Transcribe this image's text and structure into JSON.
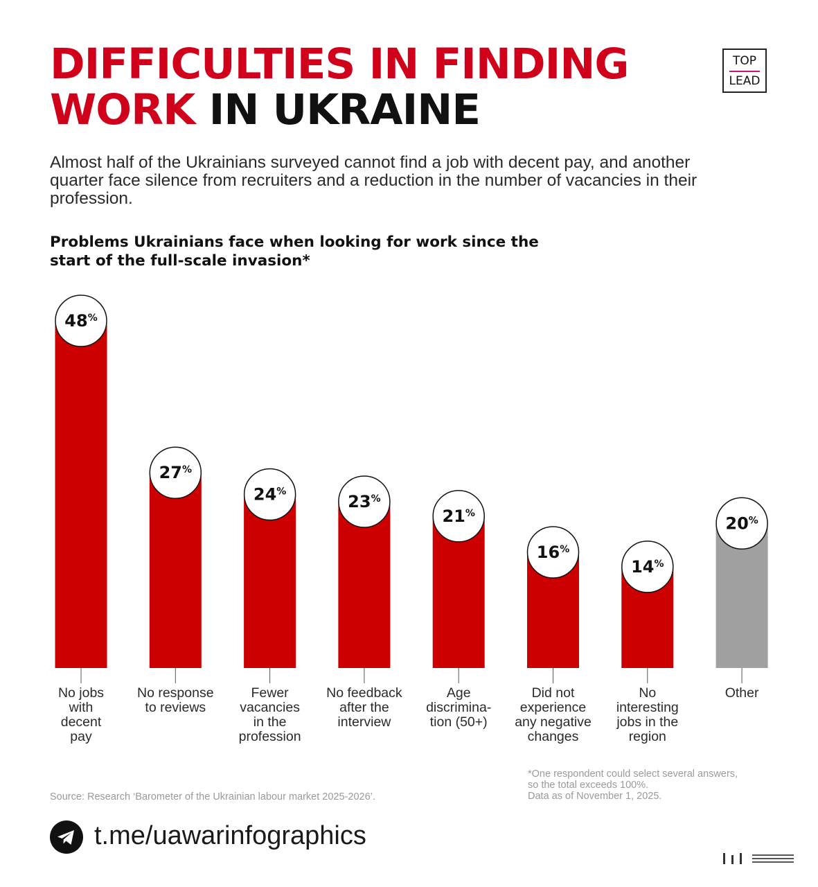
{
  "header": {
    "title_red_1": "DIFFICULTIES IN FINDING",
    "title_red_2": "WORK",
    "title_black": "IN UKRAINE",
    "subtitle": "Almost half of the Ukrainians surveyed cannot find a job with decent pay, and another quarter face silence from recruiters and a reduction in the number of vacancies in their profession.",
    "chart_title": "Problems Ukrainians face when looking for work since the start of the full-scale invasion*"
  },
  "logo": {
    "top": "TOP",
    "bottom": "LEAD"
  },
  "colors": {
    "accent_red": "#d0021b",
    "bar_red": "#cc0000",
    "bar_gray": "#a0a0a0",
    "logo_line": "#c2167a"
  },
  "chart_data": {
    "type": "bar",
    "unit": "%",
    "ylim": [
      0,
      48
    ],
    "categories": [
      [
        "No jobs",
        "with",
        "decent",
        "pay"
      ],
      [
        "No response",
        "to reviews"
      ],
      [
        "Fewer",
        "vacancies",
        "in the",
        "profession"
      ],
      [
        "No feedback",
        "after the",
        "interview"
      ],
      [
        "Age",
        "discrimina-",
        "tion (50+)"
      ],
      [
        "Did not",
        "experience",
        "any negative",
        "changes"
      ],
      [
        "No",
        "interesting",
        "jobs in the",
        "region"
      ],
      [
        "Other"
      ]
    ],
    "values": [
      48,
      27,
      24,
      23,
      21,
      16,
      14,
      20
    ],
    "highlight": [
      "red",
      "red",
      "red",
      "red",
      "red",
      "red",
      "red",
      "gray"
    ]
  },
  "footer": {
    "source": "Source: Research ‘Barometer of the Ukrainian labour market 2025-2026’.",
    "note_lines": [
      "*One respondent could select several answers,",
      "so the total exceeds 100%.",
      "Data as of November 1, 2025."
    ],
    "link": "t.me/uawarinfographics",
    "link_icon": "telegram-icon"
  }
}
